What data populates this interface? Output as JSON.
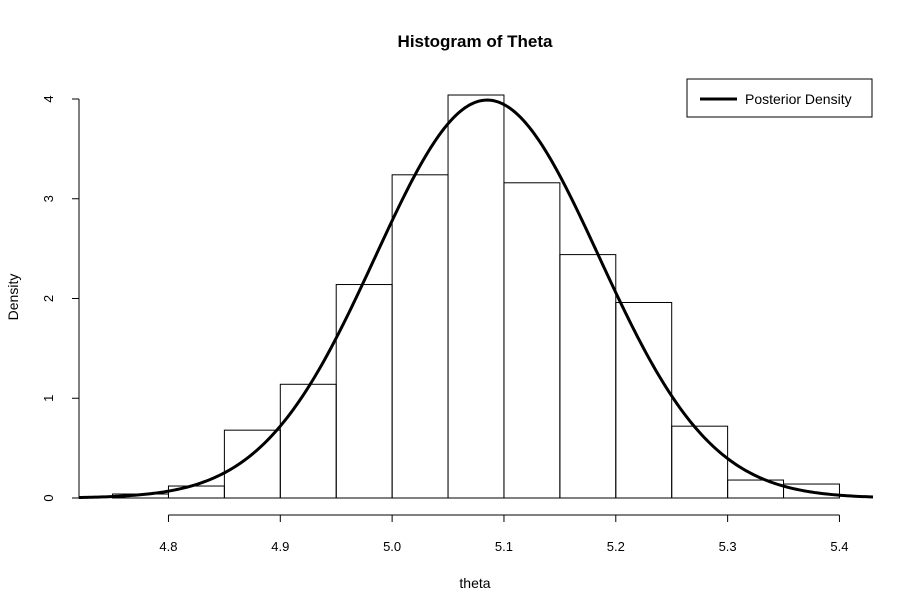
{
  "chart_data": {
    "type": "histogram",
    "title": "Histogram of Theta",
    "xlabel": "theta",
    "ylabel": "Density",
    "xlim": [
      4.72,
      5.43
    ],
    "ylim": [
      0,
      4.0
    ],
    "x_ticks": [
      4.8,
      4.9,
      5.0,
      5.1,
      5.2,
      5.3,
      5.4
    ],
    "x_tick_labels": [
      "4.8",
      "4.9",
      "5.0",
      "5.1",
      "5.2",
      "5.3",
      "5.4"
    ],
    "y_ticks": [
      0,
      1,
      2,
      3,
      4
    ],
    "y_tick_labels": [
      "0",
      "1",
      "2",
      "3",
      "4"
    ],
    "bins": [
      {
        "start": 4.75,
        "end": 4.8,
        "density": 0.04
      },
      {
        "start": 4.8,
        "end": 4.85,
        "density": 0.12
      },
      {
        "start": 4.85,
        "end": 4.9,
        "density": 0.68
      },
      {
        "start": 4.9,
        "end": 4.95,
        "density": 1.14
      },
      {
        "start": 4.95,
        "end": 5.0,
        "density": 2.14
      },
      {
        "start": 5.0,
        "end": 5.05,
        "density": 3.24
      },
      {
        "start": 5.05,
        "end": 5.1,
        "density": 4.04
      },
      {
        "start": 5.1,
        "end": 5.15,
        "density": 3.16
      },
      {
        "start": 5.15,
        "end": 5.2,
        "density": 2.44
      },
      {
        "start": 5.2,
        "end": 5.25,
        "density": 1.96
      },
      {
        "start": 5.25,
        "end": 5.3,
        "density": 0.72
      },
      {
        "start": 5.3,
        "end": 5.35,
        "density": 0.18
      },
      {
        "start": 5.35,
        "end": 5.4,
        "density": 0.14
      }
    ],
    "series": [
      {
        "name": "Posterior Density",
        "type": "line",
        "distribution": "normal",
        "mean": 5.085,
        "sd": 0.1
      }
    ],
    "legend": {
      "position": "top-right",
      "entries": [
        "Posterior Density"
      ]
    },
    "grid": false
  }
}
